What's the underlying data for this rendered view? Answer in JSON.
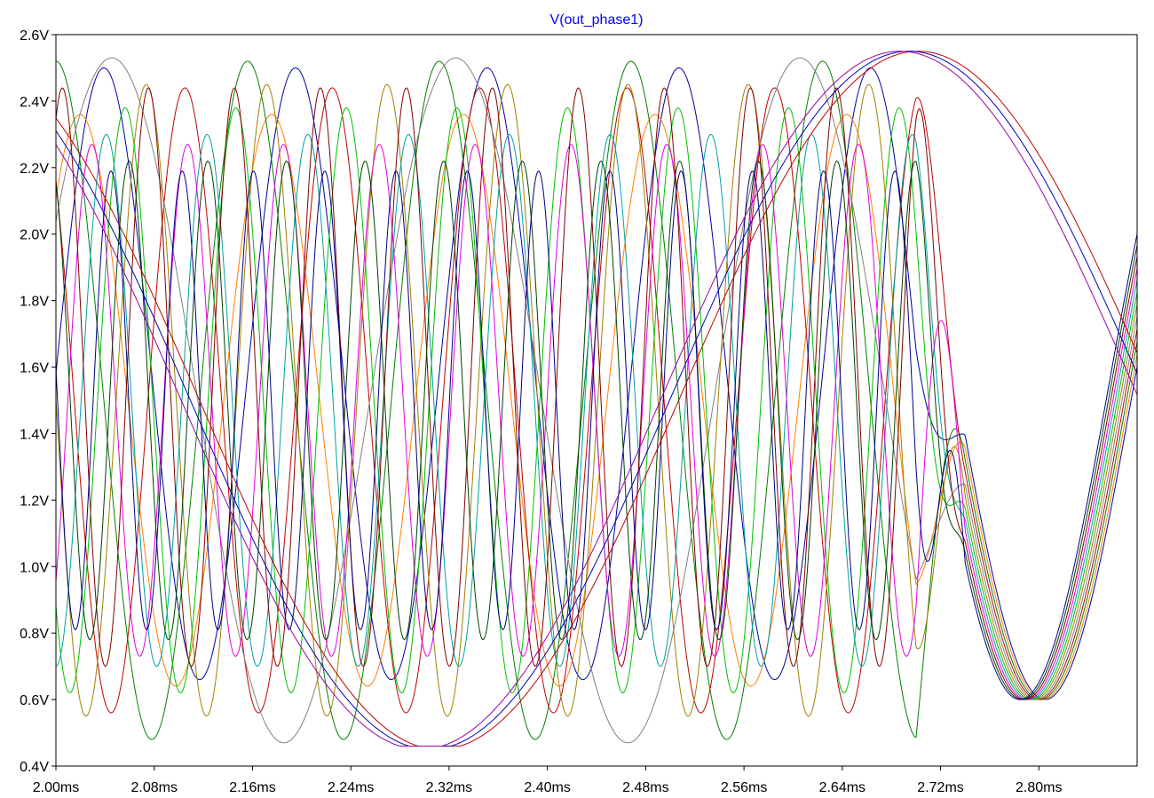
{
  "chart_data": {
    "type": "line",
    "title": "V(out_phase1)",
    "xlabel": "",
    "ylabel": "",
    "xlim": [
      2.0,
      2.88
    ],
    "ylim": [
      0.4,
      2.6
    ],
    "x_unit": "ms",
    "y_unit": "V",
    "grid": false,
    "x_ticks": [
      "2.00ms",
      "2.08ms",
      "2.16ms",
      "2.24ms",
      "2.32ms",
      "2.40ms",
      "2.48ms",
      "2.56ms",
      "2.64ms",
      "2.72ms",
      "2.80ms"
    ],
    "y_ticks": [
      "2.6V",
      "2.4V",
      "2.2V",
      "2.0V",
      "1.8V",
      "1.6V",
      "1.4V",
      "1.2V",
      "1.0V",
      "0.8V",
      "0.6V",
      "0.4V"
    ],
    "series": [
      {
        "color": "#0000a0",
        "center": 1.58,
        "amplitude": 0.92,
        "period": 0.156,
        "phase": 0.0
      },
      {
        "color": "#ff7f00",
        "center": 1.5,
        "amplitude": 0.86,
        "period": 0.156,
        "phase": 0.78
      },
      {
        "color": "#008000",
        "center": 1.5,
        "amplitude": 1.02,
        "period": 0.156,
        "phase": 1.57
      },
      {
        "color": "#c00000",
        "center": 1.5,
        "amplitude": 0.94,
        "period": 0.12,
        "phase": 2.36
      },
      {
        "color": "#808080",
        "center": 1.5,
        "amplitude": 1.03,
        "period": 0.28,
        "phase": 0.55
      },
      {
        "color": "#a08000",
        "center": 1.5,
        "amplitude": 0.95,
        "period": 0.098,
        "phase": 3.14
      },
      {
        "color": "#00c000",
        "center": 1.5,
        "amplitude": 0.88,
        "period": 0.09,
        "phase": 3.92
      },
      {
        "color": "#00a0a0",
        "center": 1.5,
        "amplitude": 0.8,
        "period": 0.082,
        "phase": 4.71
      },
      {
        "color": "#e000e0",
        "center": 1.5,
        "amplitude": 0.77,
        "period": 0.078,
        "phase": 5.5
      },
      {
        "color": "#800000",
        "center": 1.57,
        "amplitude": 0.87,
        "period": 0.07,
        "phase": 1.1
      },
      {
        "color": "#004000",
        "center": 1.5,
        "amplitude": 0.72,
        "period": 0.064,
        "phase": 2.0
      },
      {
        "color": "#000080",
        "center": 1.5,
        "amplitude": 0.69,
        "period": 0.058,
        "phase": 3.0
      },
      {
        "color": "#c00000",
        "center": 1.5,
        "amplitude": 1.05,
        "period": 0.78,
        "phase": 2.2
      },
      {
        "color": "#0000c0",
        "center": 1.5,
        "amplitude": 1.05,
        "period": 0.78,
        "phase": 2.26
      },
      {
        "color": "#a000a0",
        "center": 1.5,
        "amplitude": 1.05,
        "period": 0.78,
        "phase": 2.32
      }
    ]
  }
}
